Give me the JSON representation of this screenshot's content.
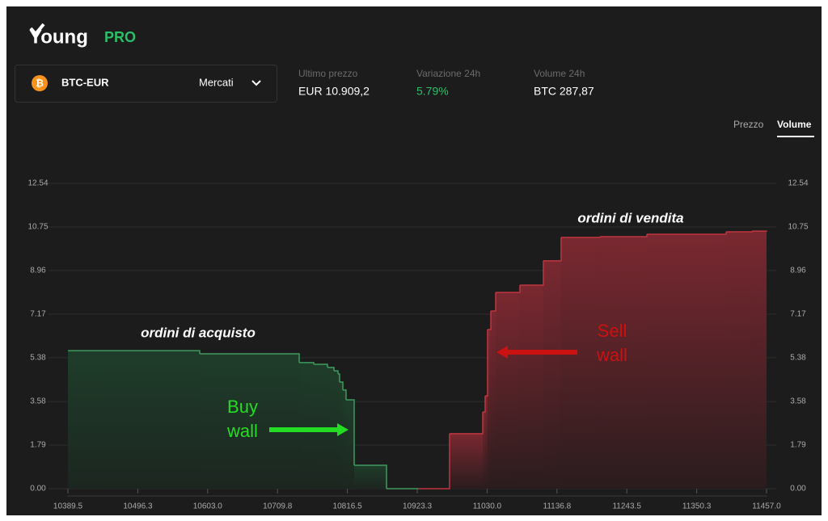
{
  "header": {
    "logo": "Young",
    "badge": "PRO"
  },
  "market": {
    "pair": "BTC-EUR",
    "menu": "Mercati"
  },
  "stats": [
    {
      "label": "Ultimo prezzo",
      "value": "EUR 10.909,2"
    },
    {
      "label": "Variazione 24h",
      "value": "5.79%"
    },
    {
      "label": "Volume 24h",
      "value": "BTC 287,87"
    }
  ],
  "tabs": [
    "Prezzo",
    "Volume"
  ],
  "active_tab": 1,
  "chart_data": {
    "type": "depth",
    "xlim": [
      10389.5,
      11457.0
    ],
    "xticks": [
      10389.5,
      10496.3,
      {
        "value": 10603.0,
        "label": "10603.0"
      },
      10709.8,
      10816.5,
      10923.3,
      {
        "value": 11030.0,
        "label": "11030.0"
      },
      11136.8,
      11243.5,
      11350.3,
      {
        "value": 11457.0,
        "label": "11457.0"
      }
    ],
    "ylim": [
      0,
      12.54
    ],
    "yticks": [
      {
        "value": 0,
        "label": "0.00"
      },
      1.79,
      3.58,
      5.38,
      7.17,
      8.96,
      10.75,
      12.54
    ],
    "grid": true,
    "series": [
      {
        "color": "#3f9a5e",
        "x": [
          10389.5,
          10590.9,
          10742.9,
          10765.1,
          10786.1,
          10796.0,
          10802.2,
          10804.6,
          10809.6,
          10814.5,
          10826.9,
          10876.3,
          10924.5
        ],
        "values": [
          5.67,
          5.54,
          5.18,
          5.11,
          4.98,
          4.84,
          4.71,
          4.38,
          4.05,
          3.65,
          0.96,
          0,
          0
        ]
      },
      {
        "color": "#c0353f",
        "x": [
          10924.5,
          10972.6,
          11023.3,
          11027.0,
          11030.7,
          11035.7,
          11043.1,
          11080.1,
          11116.0,
          11143.1,
          11202.4,
          11274.1,
          11395.2,
          11434.7,
          11457.0
        ],
        "values": [
          0,
          2.26,
          3.15,
          3.81,
          6.54,
          7.3,
          8.06,
          8.36,
          9.36,
          10.32,
          10.35,
          10.45,
          10.55,
          10.58,
          10.6
        ]
      }
    ],
    "annotations": [
      {
        "text": "ordini di acquisto",
        "color": "#ffffff"
      },
      {
        "text": "ordini di vendita",
        "color": "#ffffff"
      },
      {
        "text": "Buy",
        "color": "#22dd22"
      },
      {
        "text": "wall",
        "color": "#22dd22"
      },
      {
        "text": "Sell",
        "color": "#cc1111"
      },
      {
        "text": "wall",
        "color": "#cc1111"
      }
    ]
  }
}
